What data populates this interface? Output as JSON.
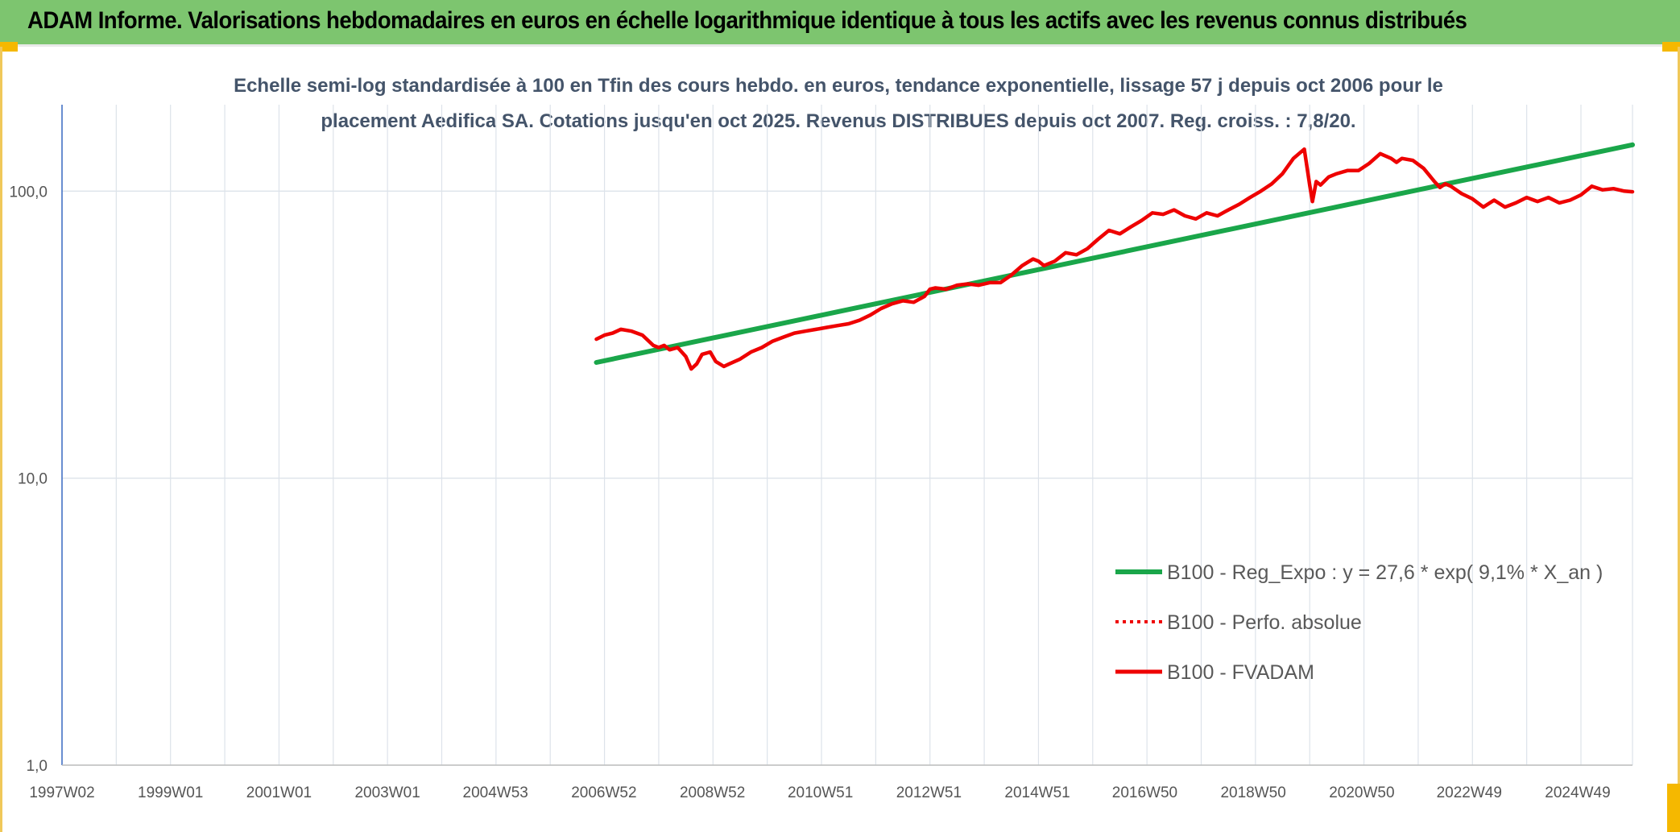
{
  "header": {
    "title": "ADAM Informe. Valorisations hebdomadaires en euros en échelle logarithmique identique à tous les actifs avec les revenus connus distribués"
  },
  "colors": {
    "header_bg": "#7dc56f",
    "accent": "#f5b800",
    "regression": "#1aa64a",
    "fvadam": "#ee0000",
    "subtitle": "#44546a",
    "grid": "#dde3ea",
    "axis": "#4472c4"
  },
  "chart_data": {
    "type": "line",
    "title_lines": [
      "Echelle semi-log standardisée à 100 en Tfin des cours hebdo. en euros, tendance exponentielle, lissage 57 j depuis oct 2006 pour le",
      "placement Aedifica SA. Cotations jusqu'en oct 2025. Revenus DISTRIBUES depuis oct 2007. Reg. croiss. : 7,8/20."
    ],
    "xlabel": "",
    "ylabel": "",
    "y_scale": "log",
    "ylim": [
      1,
      200
    ],
    "xlim": [
      1997.0,
      2025.95
    ],
    "grid": true,
    "legend_position": "lower-right",
    "y_ticks": [
      {
        "value": 1,
        "label": "1,0"
      },
      {
        "value": 10,
        "label": "10,0"
      },
      {
        "value": 100,
        "label": "100,0"
      }
    ],
    "x_ticks": [
      {
        "value": 1997.0,
        "label": "1997W02"
      },
      {
        "value": 1999.0,
        "label": "1999W01"
      },
      {
        "value": 2001.0,
        "label": "2001W01"
      },
      {
        "value": 2003.0,
        "label": "2003W01"
      },
      {
        "value": 2004.99,
        "label": "2004W53"
      },
      {
        "value": 2006.99,
        "label": "2006W52"
      },
      {
        "value": 2008.99,
        "label": "2008W52"
      },
      {
        "value": 2010.98,
        "label": "2010W51"
      },
      {
        "value": 2012.98,
        "label": "2012W51"
      },
      {
        "value": 2014.98,
        "label": "2014W51"
      },
      {
        "value": 2016.96,
        "label": "2016W50"
      },
      {
        "value": 2018.96,
        "label": "2018W50"
      },
      {
        "value": 2020.96,
        "label": "2020W50"
      },
      {
        "value": 2022.94,
        "label": "2022W49"
      },
      {
        "value": 2024.94,
        "label": "2024W49"
      }
    ],
    "series": [
      {
        "name": "B100 - Reg_Expo : y = 27,6 * exp( 9,1% *  X_an )",
        "style": "solid-thick",
        "color": "#1aa64a",
        "x": [
          2006.85,
          2025.95
        ],
        "y": [
          25.3,
          145.0
        ]
      },
      {
        "name": "B100 - Perfo. absolue",
        "style": "dotted",
        "color": "#ee0000",
        "x": [],
        "y": []
      },
      {
        "name": "B100 - FVADAM",
        "style": "solid",
        "color": "#ee0000",
        "x": [
          2006.85,
          2007.0,
          2007.15,
          2007.3,
          2007.5,
          2007.7,
          2007.9,
          2008.0,
          2008.1,
          2008.2,
          2008.35,
          2008.5,
          2008.6,
          2008.7,
          2008.8,
          2008.95,
          2009.05,
          2009.2,
          2009.3,
          2009.5,
          2009.7,
          2009.9,
          2010.1,
          2010.3,
          2010.5,
          2010.7,
          2010.9,
          2011.1,
          2011.3,
          2011.5,
          2011.7,
          2011.9,
          2012.1,
          2012.3,
          2012.5,
          2012.7,
          2012.9,
          2013.0,
          2013.1,
          2013.3,
          2013.5,
          2013.7,
          2013.9,
          2014.1,
          2014.3,
          2014.5,
          2014.7,
          2014.9,
          2015.0,
          2015.1,
          2015.3,
          2015.5,
          2015.7,
          2015.9,
          2016.1,
          2016.3,
          2016.5,
          2016.7,
          2016.9,
          2017.1,
          2017.3,
          2017.5,
          2017.7,
          2017.9,
          2018.1,
          2018.3,
          2018.5,
          2018.7,
          2018.9,
          2019.1,
          2019.3,
          2019.5,
          2019.7,
          2019.9,
          2020.0,
          2020.05,
          2020.12,
          2020.2,
          2020.35,
          2020.5,
          2020.7,
          2020.9,
          2021.1,
          2021.3,
          2021.5,
          2021.6,
          2021.7,
          2021.9,
          2022.1,
          2022.3,
          2022.4,
          2022.5,
          2022.6,
          2022.8,
          2023.0,
          2023.2,
          2023.4,
          2023.6,
          2023.8,
          2024.0,
          2024.2,
          2024.4,
          2024.6,
          2024.8,
          2025.0,
          2025.2,
          2025.4,
          2025.6,
          2025.8,
          2025.95
        ],
        "y": [
          30.5,
          31.5,
          32.0,
          33.0,
          32.5,
          31.5,
          29.0,
          28.5,
          29.0,
          28.0,
          28.5,
          26.5,
          24.0,
          25.0,
          27.0,
          27.5,
          25.5,
          24.5,
          25.0,
          26.0,
          27.5,
          28.5,
          30.0,
          31.0,
          32.0,
          32.5,
          33.0,
          33.5,
          34.0,
          34.5,
          35.5,
          37.0,
          39.0,
          40.5,
          41.5,
          41.0,
          43.0,
          45.5,
          46.0,
          45.5,
          47.0,
          47.5,
          47.0,
          48.0,
          48.0,
          51.0,
          55.0,
          58.0,
          57.0,
          55.0,
          57.0,
          61.0,
          60.0,
          63.0,
          68.0,
          73.0,
          71.0,
          75.0,
          79.0,
          84.0,
          83.0,
          86.0,
          82.0,
          80.0,
          84.0,
          82.0,
          86.0,
          90.0,
          95.0,
          100.0,
          106.0,
          115.0,
          130.0,
          140.0,
          105.0,
          92.0,
          108.0,
          105.0,
          112.0,
          115.0,
          118.0,
          118.0,
          125.0,
          135.0,
          130.0,
          126.0,
          130.0,
          128.0,
          120.0,
          108.0,
          103.0,
          106.0,
          104.0,
          98.0,
          94.0,
          88.0,
          93.0,
          88.0,
          91.0,
          95.0,
          92.0,
          95.0,
          91.0,
          93.0,
          97.0,
          104.0,
          101.0,
          102.0,
          100.0,
          99.5
        ]
      }
    ]
  }
}
